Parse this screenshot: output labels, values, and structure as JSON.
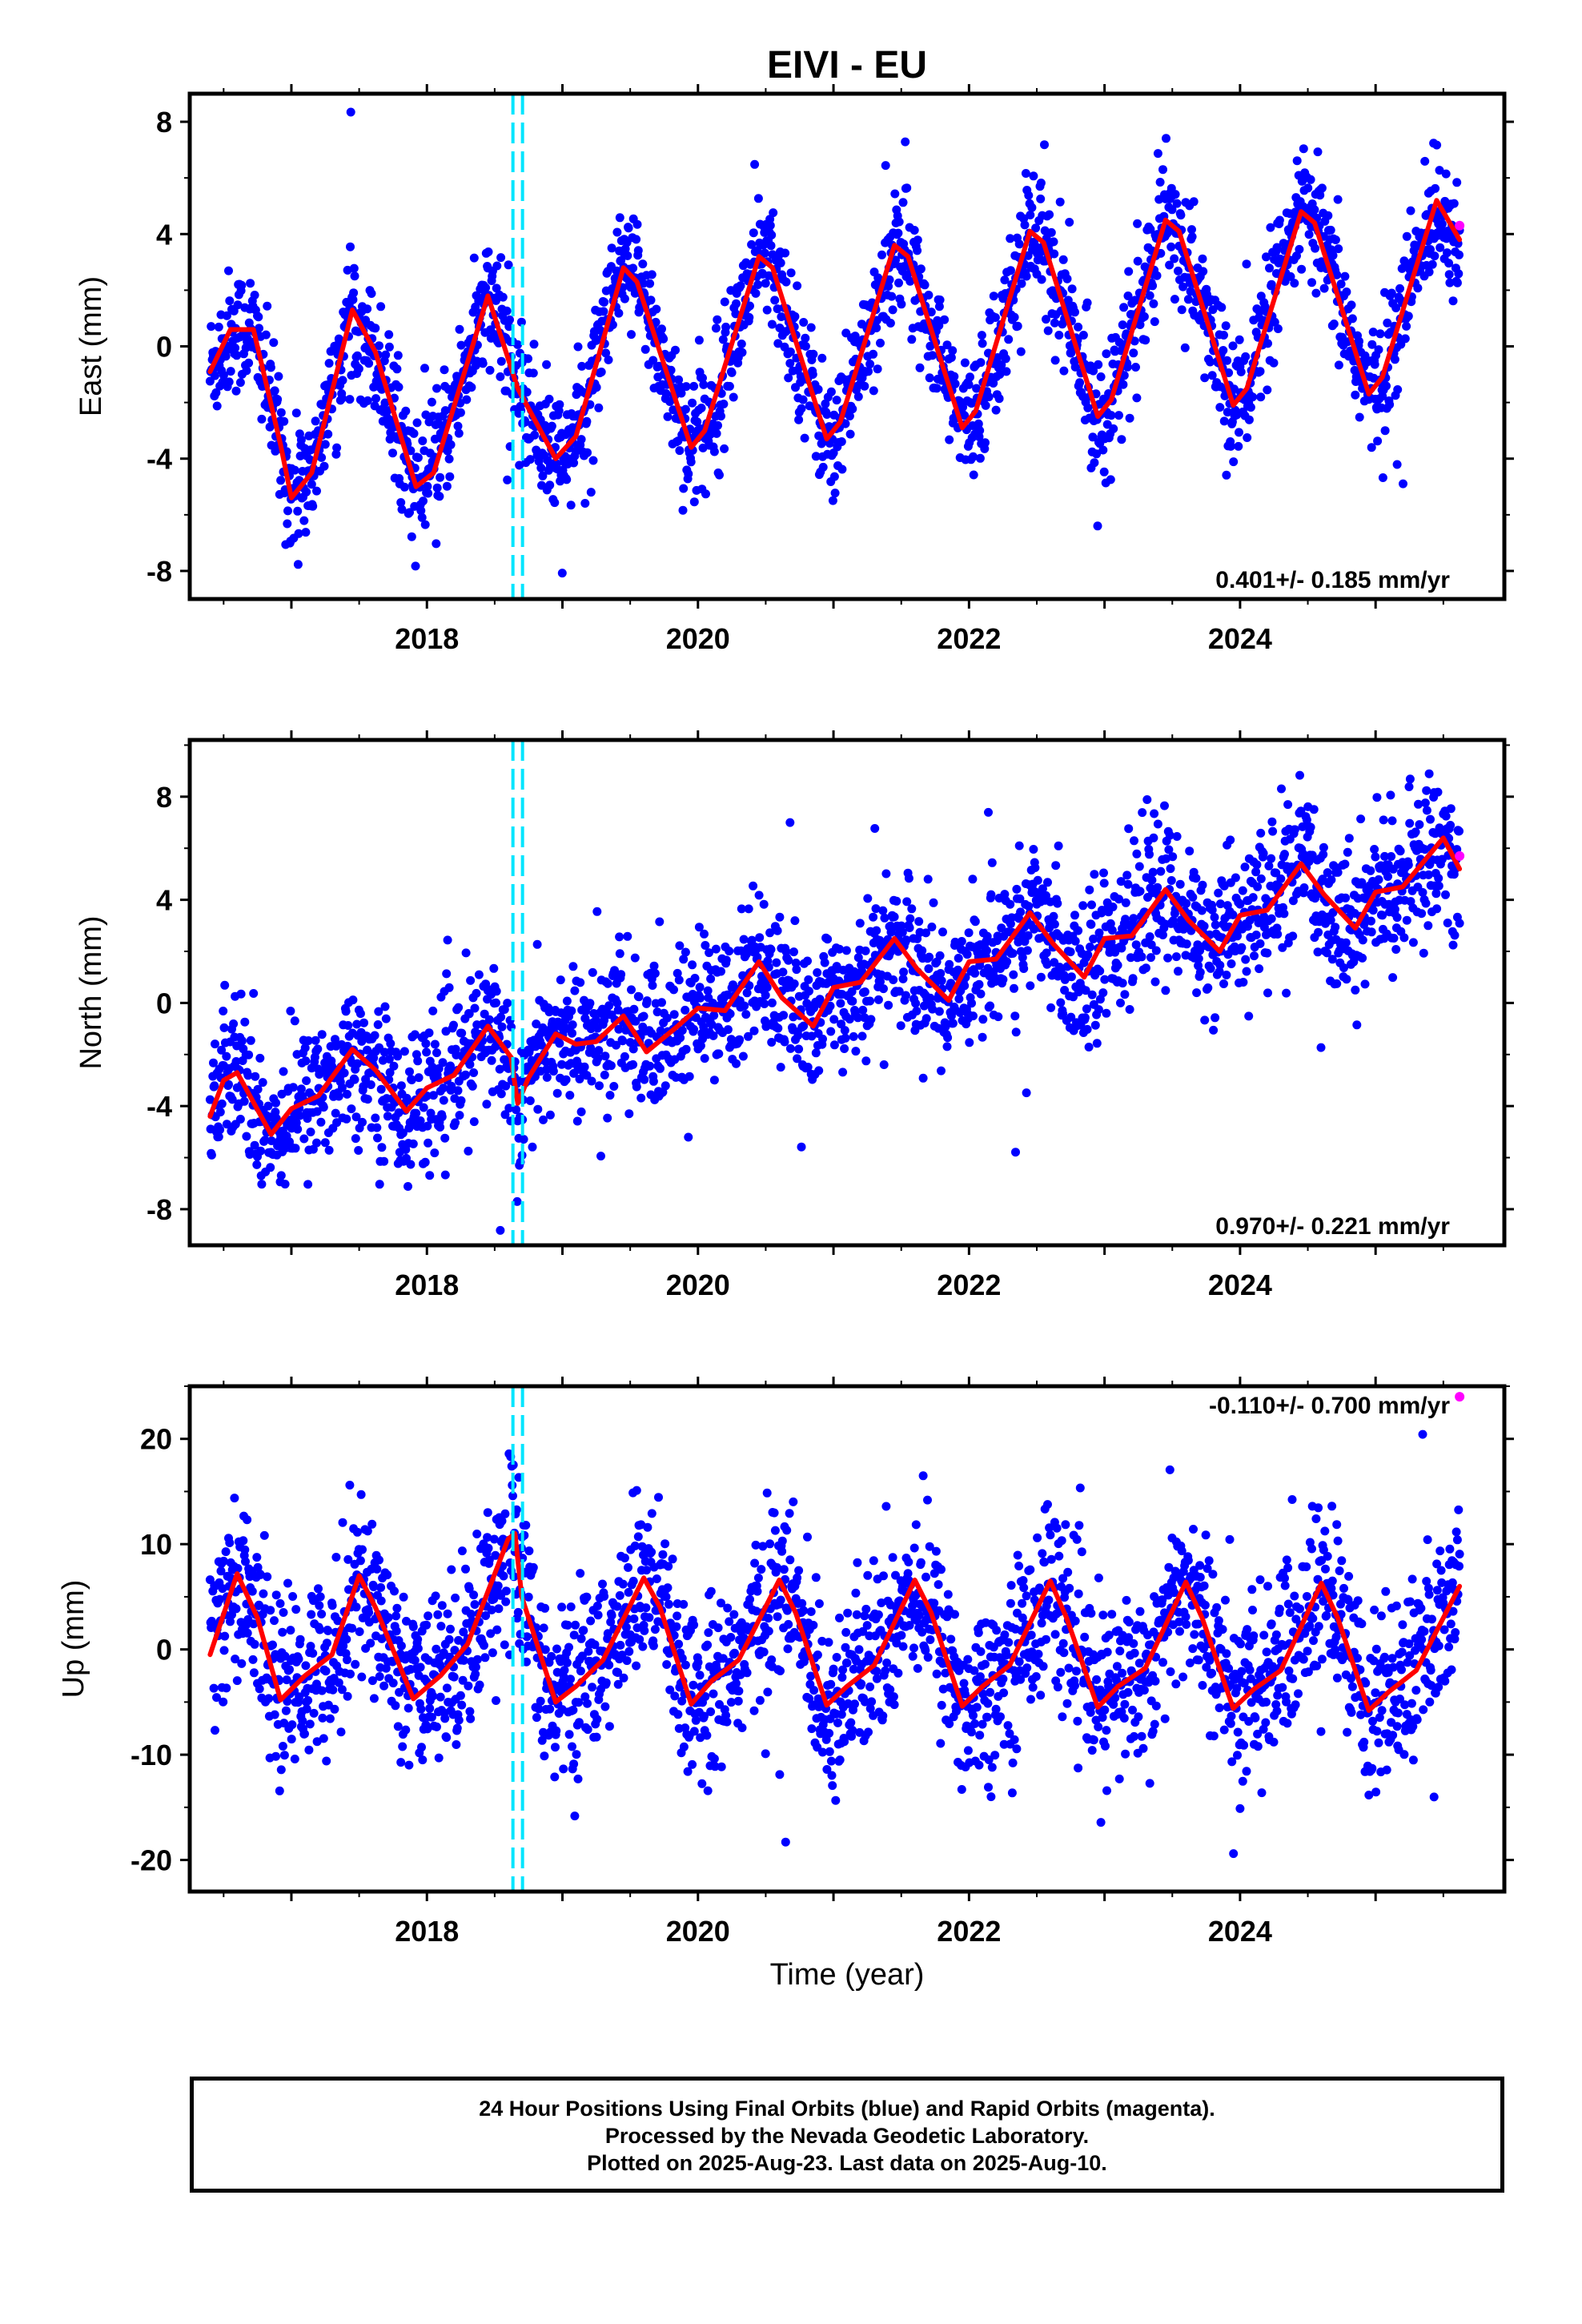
{
  "title": "EIVI - EU",
  "xlabel": "Time (year)",
  "footer": {
    "line1": "24 Hour Positions Using Final Orbits (blue) and Rapid Orbits (magenta).",
    "line2": "Processed by the Nevada Geodetic Laboratory.",
    "line3": "Plotted on 2025-Aug-23. Last data on 2025-Aug-10."
  },
  "colors": {
    "final_orbits": "#0000ff",
    "rapid_orbits": "#ff00ff",
    "model": "#ff0000",
    "event_marker": "#00e5ff"
  },
  "chart_data": [
    {
      "type": "scatter",
      "panel": "East",
      "ylabel": "East (mm)",
      "xlim": [
        2016.25,
        2025.95
      ],
      "ylim": [
        -9,
        9
      ],
      "yticks": [
        -8,
        -4,
        0,
        4,
        8
      ],
      "xticks": [
        2018,
        2020,
        2022,
        2024
      ],
      "rate_label": "0.401+/- 0.185 mm/yr",
      "data_start": 2016.4,
      "data_end": 2025.62,
      "event_marker_x": 2018.67,
      "series": [
        {
          "name": "Final Orbits",
          "color": "#0000ff",
          "trend": [
            -0.9,
            0.401
          ],
          "seasonal_amplitude": 3.7,
          "scatter": 1.1
        },
        {
          "name": "Rapid Orbits",
          "color": "#ff00ff",
          "points": [
            [
              2025.62,
              4.3
            ]
          ]
        },
        {
          "name": "Model",
          "color": "#ff0000",
          "type": "line",
          "points": [
            [
              2016.4,
              -0.9
            ],
            [
              2016.55,
              0.6
            ],
            [
              2016.72,
              0.6
            ],
            [
              2016.92,
              -3.5
            ],
            [
              2017.0,
              -5.4
            ],
            [
              2017.15,
              -4.5
            ],
            [
              2017.45,
              1.3
            ],
            [
              2017.62,
              -0.2
            ],
            [
              2017.92,
              -5.0
            ],
            [
              2018.05,
              -4.5
            ],
            [
              2018.45,
              1.8
            ],
            [
              2018.67,
              -1.5
            ],
            [
              2018.95,
              -4.0
            ],
            [
              2019.1,
              -3.2
            ],
            [
              2019.45,
              2.8
            ],
            [
              2019.55,
              2.3
            ],
            [
              2019.95,
              -3.6
            ],
            [
              2020.05,
              -3.0
            ],
            [
              2020.45,
              3.2
            ],
            [
              2020.55,
              2.8
            ],
            [
              2020.95,
              -3.3
            ],
            [
              2021.05,
              -2.7
            ],
            [
              2021.45,
              3.6
            ],
            [
              2021.55,
              3.2
            ],
            [
              2021.95,
              -2.9
            ],
            [
              2022.05,
              -2.3
            ],
            [
              2022.45,
              4.1
            ],
            [
              2022.55,
              3.7
            ],
            [
              2022.95,
              -2.5
            ],
            [
              2023.05,
              -1.9
            ],
            [
              2023.45,
              4.5
            ],
            [
              2023.55,
              4.1
            ],
            [
              2023.95,
              -2.1
            ],
            [
              2024.05,
              -1.5
            ],
            [
              2024.45,
              4.8
            ],
            [
              2024.55,
              4.4
            ],
            [
              2024.95,
              -1.7
            ],
            [
              2025.05,
              -1.1
            ],
            [
              2025.45,
              5.2
            ],
            [
              2025.62,
              3.8
            ]
          ]
        }
      ]
    },
    {
      "type": "scatter",
      "panel": "North",
      "ylabel": "North (mm)",
      "xlim": [
        2016.25,
        2025.95
      ],
      "ylim": [
        -9.4,
        10.2
      ],
      "yticks": [
        -8,
        -4,
        0,
        4,
        8
      ],
      "xticks": [
        2018,
        2020,
        2022,
        2024
      ],
      "rate_label": "0.970+/- 0.221 mm/yr",
      "data_start": 2016.4,
      "data_end": 2025.62,
      "event_marker_x": 2018.67,
      "series": [
        {
          "name": "Final Orbits",
          "color": "#0000ff",
          "trend": [
            -3.2,
            0.97
          ],
          "seasonal_amplitude": 1.0,
          "scatter": 1.4
        },
        {
          "name": "Rapid Orbits",
          "color": "#ff00ff",
          "points": [
            [
              2025.62,
              5.7
            ]
          ]
        },
        {
          "name": "Model",
          "color": "#ff0000",
          "type": "line",
          "points": [
            [
              2016.4,
              -4.4
            ],
            [
              2016.5,
              -3.0
            ],
            [
              2016.6,
              -2.7
            ],
            [
              2016.85,
              -5.1
            ],
            [
              2017.0,
              -4.1
            ],
            [
              2017.2,
              -3.6
            ],
            [
              2017.45,
              -1.8
            ],
            [
              2017.62,
              -2.6
            ],
            [
              2017.85,
              -4.2
            ],
            [
              2018.0,
              -3.3
            ],
            [
              2018.2,
              -2.8
            ],
            [
              2018.45,
              -0.9
            ],
            [
              2018.62,
              -2.1
            ],
            [
              2018.67,
              -3.9
            ],
            [
              2018.75,
              -2.9
            ],
            [
              2018.95,
              -1.2
            ],
            [
              2019.1,
              -1.6
            ],
            [
              2019.25,
              -1.5
            ],
            [
              2019.45,
              -0.5
            ],
            [
              2019.62,
              -1.9
            ],
            [
              2019.85,
              -0.9
            ],
            [
              2020.0,
              -0.2
            ],
            [
              2020.2,
              -0.3
            ],
            [
              2020.45,
              1.6
            ],
            [
              2020.62,
              0.2
            ],
            [
              2020.85,
              -0.9
            ],
            [
              2021.0,
              0.6
            ],
            [
              2021.2,
              0.8
            ],
            [
              2021.45,
              2.5
            ],
            [
              2021.62,
              1.3
            ],
            [
              2021.85,
              0.1
            ],
            [
              2022.0,
              1.6
            ],
            [
              2022.2,
              1.7
            ],
            [
              2022.45,
              3.5
            ],
            [
              2022.62,
              2.3
            ],
            [
              2022.85,
              1.0
            ],
            [
              2023.0,
              2.5
            ],
            [
              2023.2,
              2.6
            ],
            [
              2023.45,
              4.4
            ],
            [
              2023.62,
              3.2
            ],
            [
              2023.85,
              2.0
            ],
            [
              2024.0,
              3.4
            ],
            [
              2024.2,
              3.6
            ],
            [
              2024.45,
              5.4
            ],
            [
              2024.62,
              4.2
            ],
            [
              2024.85,
              2.9
            ],
            [
              2025.0,
              4.3
            ],
            [
              2025.2,
              4.5
            ],
            [
              2025.5,
              6.4
            ],
            [
              2025.62,
              5.2
            ]
          ]
        }
      ]
    },
    {
      "type": "scatter",
      "panel": "Up",
      "ylabel": "Up (mm)",
      "xlim": [
        2016.25,
        2025.95
      ],
      "ylim": [
        -23,
        25
      ],
      "yticks": [
        -20,
        -10,
        0,
        10,
        20
      ],
      "xticks": [
        2018,
        2020,
        2022,
        2024
      ],
      "rate_label": "-0.110+/- 0.700 mm/yr",
      "data_start": 2016.4,
      "data_end": 2025.62,
      "event_marker_x": 2018.67,
      "series": [
        {
          "name": "Final Orbits",
          "color": "#0000ff",
          "trend": [
            0.5,
            -0.11
          ],
          "seasonal_amplitude": 6.0,
          "scatter": 4.2
        },
        {
          "name": "Rapid Orbits",
          "color": "#ff00ff",
          "points": [
            [
              2025.62,
              24
            ]
          ]
        },
        {
          "name": "Model",
          "color": "#ff0000",
          "type": "line",
          "points": [
            [
              2016.4,
              -0.5
            ],
            [
              2016.6,
              7.2
            ],
            [
              2016.75,
              3.0
            ],
            [
              2016.92,
              -4.8
            ],
            [
              2017.1,
              -2.5
            ],
            [
              2017.3,
              -0.5
            ],
            [
              2017.5,
              7.0
            ],
            [
              2017.62,
              4.0
            ],
            [
              2017.9,
              -4.7
            ],
            [
              2018.1,
              -2.5
            ],
            [
              2018.3,
              0.5
            ],
            [
              2018.6,
              10.5
            ],
            [
              2018.65,
              11.0
            ],
            [
              2018.7,
              5.0
            ],
            [
              2018.95,
              -5.0
            ],
            [
              2019.1,
              -3.5
            ],
            [
              2019.3,
              -1.0
            ],
            [
              2019.6,
              6.8
            ],
            [
              2019.72,
              4.0
            ],
            [
              2019.95,
              -5.2
            ],
            [
              2020.1,
              -3.0
            ],
            [
              2020.3,
              -1.0
            ],
            [
              2020.6,
              6.6
            ],
            [
              2020.72,
              3.5
            ],
            [
              2020.95,
              -5.3
            ],
            [
              2021.1,
              -3.5
            ],
            [
              2021.3,
              -1.5
            ],
            [
              2021.6,
              6.6
            ],
            [
              2021.72,
              3.5
            ],
            [
              2021.95,
              -5.4
            ],
            [
              2022.1,
              -3.5
            ],
            [
              2022.3,
              -1.5
            ],
            [
              2022.6,
              6.5
            ],
            [
              2022.72,
              3.0
            ],
            [
              2022.95,
              -5.5
            ],
            [
              2023.1,
              -3.5
            ],
            [
              2023.3,
              -1.8
            ],
            [
              2023.6,
              6.4
            ],
            [
              2023.72,
              3.0
            ],
            [
              2023.95,
              -5.6
            ],
            [
              2024.1,
              -3.8
            ],
            [
              2024.3,
              -2.0
            ],
            [
              2024.6,
              6.3
            ],
            [
              2024.72,
              3.0
            ],
            [
              2024.95,
              -5.8
            ],
            [
              2025.1,
              -4.0
            ],
            [
              2025.3,
              -2.0
            ],
            [
              2025.62,
              6.0
            ]
          ]
        }
      ]
    }
  ]
}
